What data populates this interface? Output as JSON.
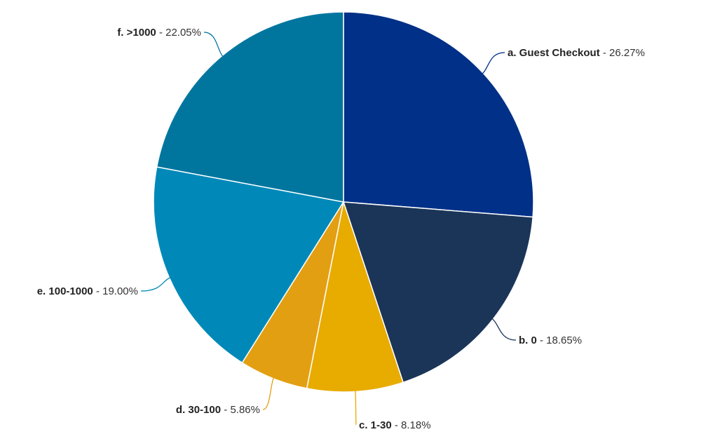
{
  "chart_data": {
    "type": "pie",
    "title": "",
    "slices": [
      {
        "label": "a. Guest Checkout",
        "value": 26.27,
        "value_text": "26.27%",
        "color": "#003087"
      },
      {
        "label": "b. 0",
        "value": 18.65,
        "value_text": "18.65%",
        "color": "#1b3558"
      },
      {
        "label": "c. 1-30",
        "value": 8.18,
        "value_text": "8.18%",
        "color": "#e8ab00"
      },
      {
        "label": "d. 30-100",
        "value": 5.86,
        "value_text": "5.86%",
        "color": "#e39f12"
      },
      {
        "label": "e. 100-1000",
        "value": 19.0,
        "value_text": "19.00%",
        "color": "#0089b8"
      },
      {
        "label": "f. >1000",
        "value": 22.05,
        "value_text": "22.05%",
        "color": "#00769f"
      }
    ],
    "start_angle_deg": 0,
    "direction": "clockwise",
    "legend": "none",
    "labels": "outside with leader lines"
  }
}
